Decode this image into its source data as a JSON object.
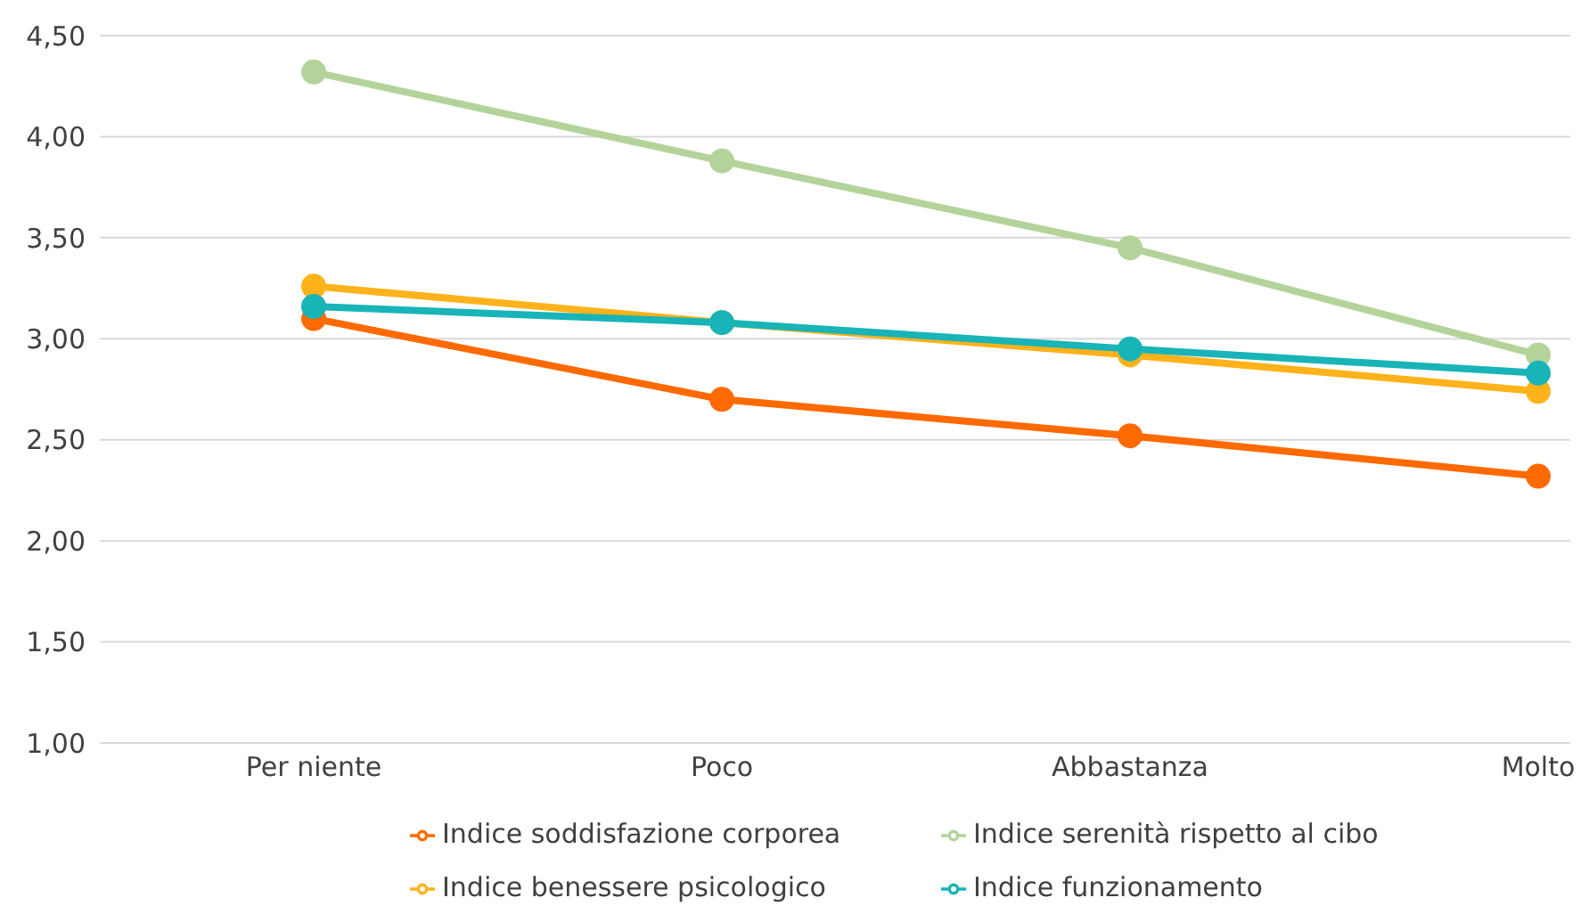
{
  "chart_data": {
    "type": "line",
    "categories": [
      "Per niente",
      "Poco",
      "Abbastanza",
      "Molto"
    ],
    "series": [
      {
        "name": "Indice soddisfazione corporea",
        "color": "#ff6a00",
        "values": [
          3.1,
          2.7,
          2.52,
          2.32
        ]
      },
      {
        "name": "Indice serenità rispetto al cibo",
        "color": "#b4d39b",
        "values": [
          4.32,
          3.88,
          3.45,
          2.92
        ]
      },
      {
        "name": "Indice benessere psicologico",
        "color": "#ffb21a",
        "values": [
          3.26,
          3.08,
          2.92,
          2.74
        ]
      },
      {
        "name": "Indice funzionamento",
        "color": "#18b4b8",
        "values": [
          3.16,
          3.08,
          2.95,
          2.83
        ]
      }
    ],
    "ylim": [
      1,
      4.5
    ],
    "yticks": [
      {
        "value": 1,
        "label": "1,00"
      },
      {
        "value": 1.5,
        "label": "1,50"
      },
      {
        "value": 2,
        "label": "2,00"
      },
      {
        "value": 2.5,
        "label": "2,50"
      },
      {
        "value": 3,
        "label": "3,00"
      },
      {
        "value": 3.5,
        "label": "3,50"
      },
      {
        "value": 4,
        "label": "4,00"
      },
      {
        "value": 4.5,
        "label": "4,50"
      }
    ],
    "grid": "y",
    "legend": "bottom",
    "marker": "circle",
    "line_style": "solid"
  }
}
